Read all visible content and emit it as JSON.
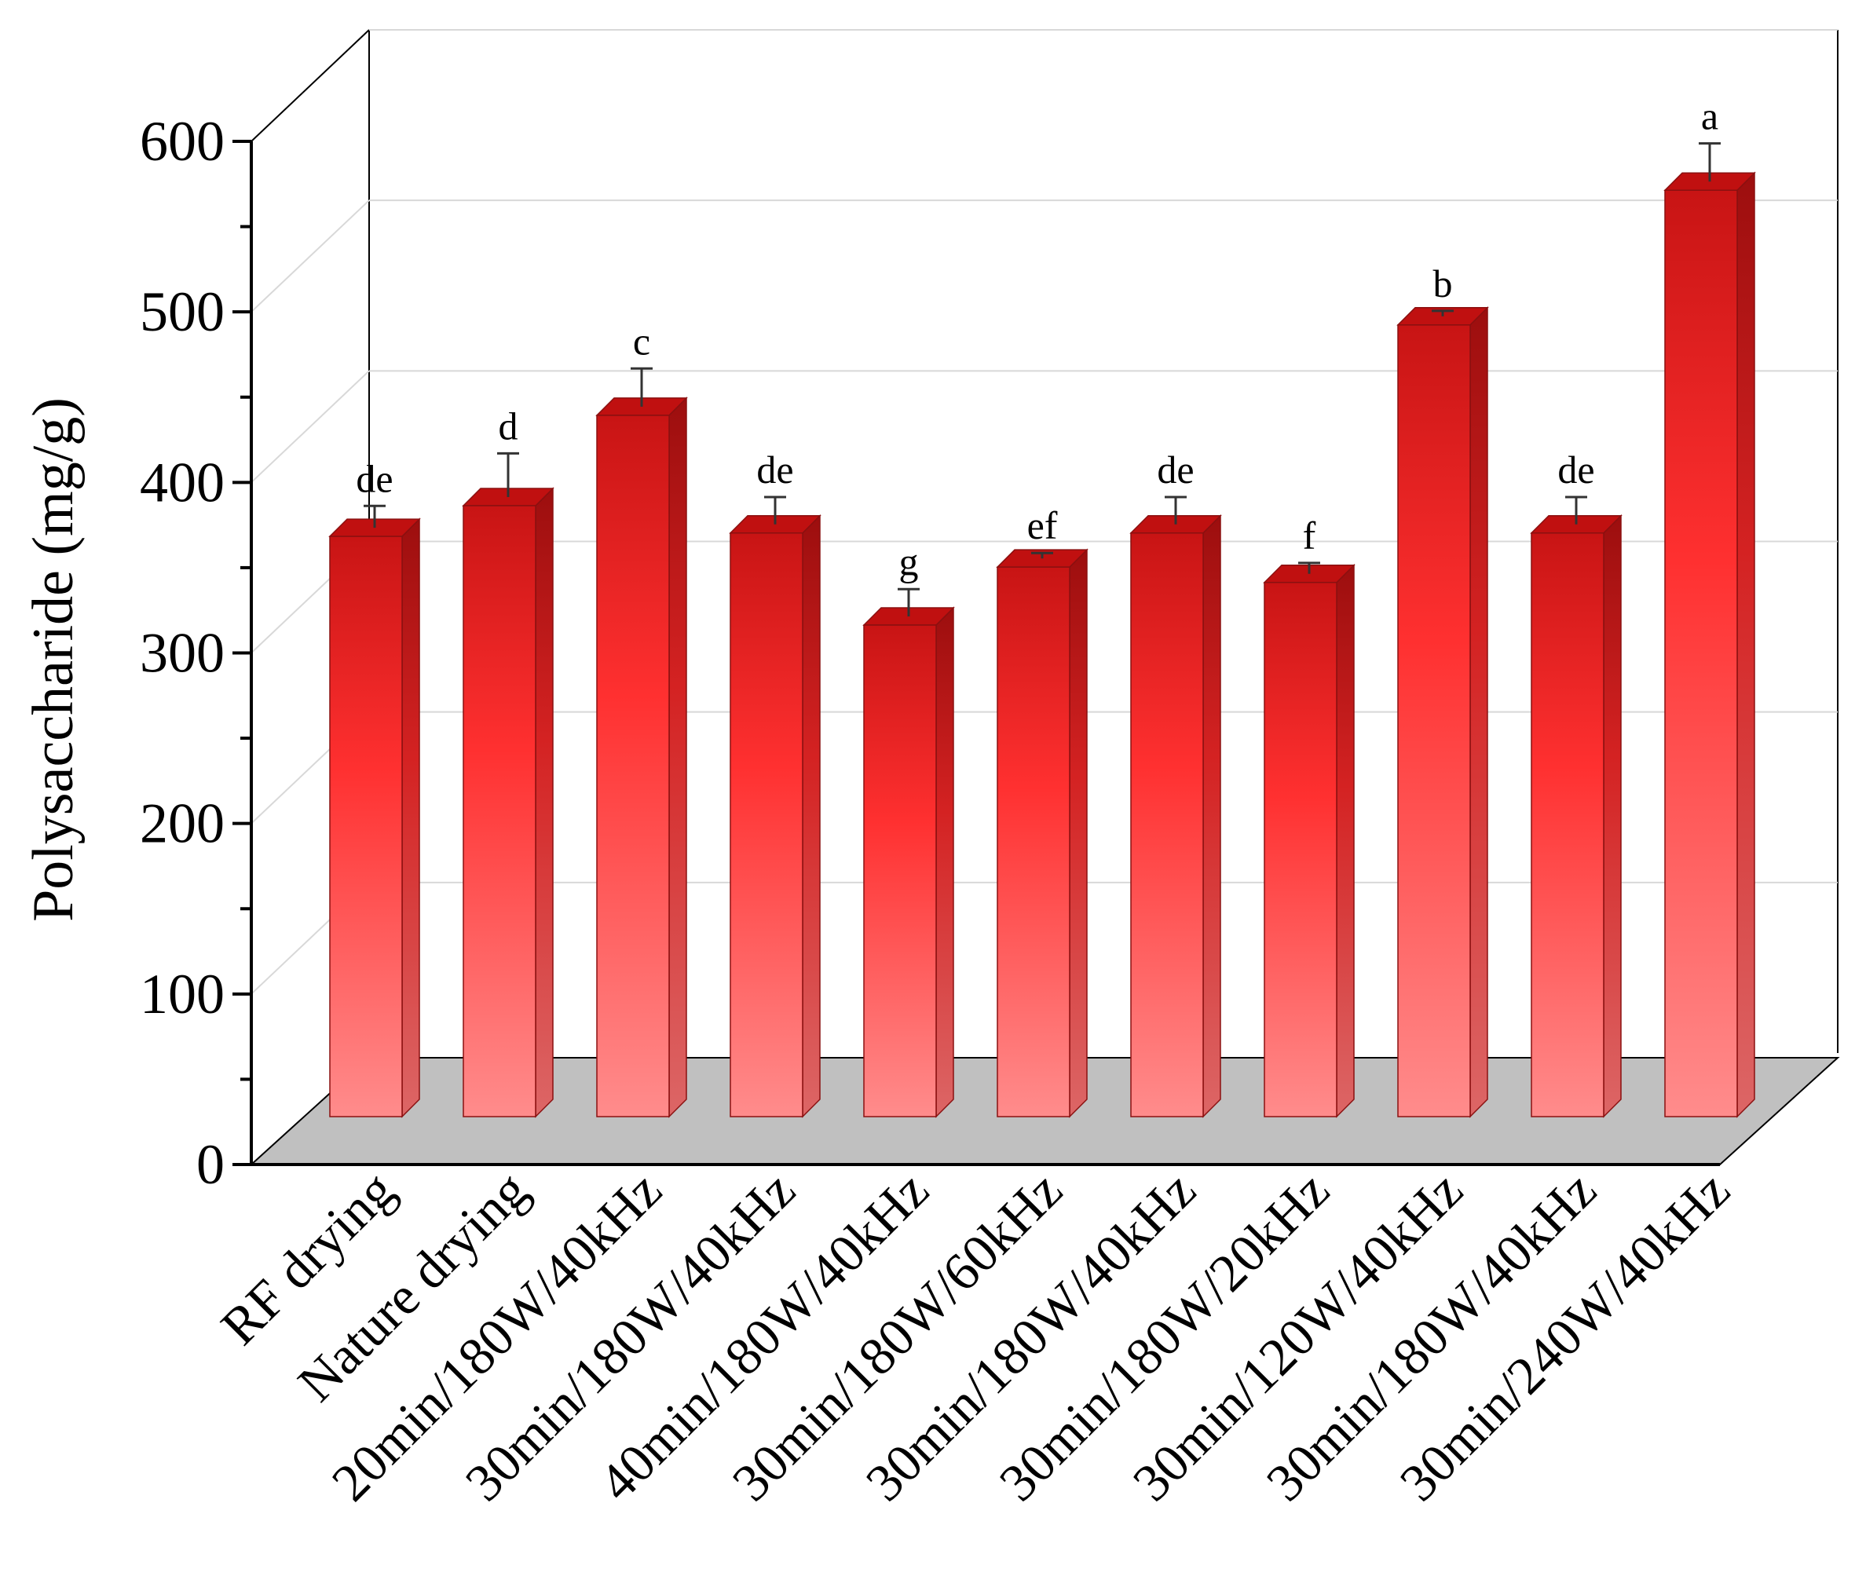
{
  "chart_data": {
    "type": "bar",
    "ylabel": "Polysaccharide (mg/g)",
    "ylim": [
      0,
      600
    ],
    "yticks": [
      0,
      100,
      200,
      300,
      400,
      500,
      600
    ],
    "grid": true,
    "categories": [
      "RF drying",
      "Nature drying",
      "20min/180W/40kHz",
      "30min/180W/40kHz",
      "40min/180W/40kHz",
      "30min/180W/60kHz",
      "30min/180W/40kHz",
      "30min/180W/20kHz",
      "30min/120W/40kHz",
      "30min/180W/40kHz",
      "30min/240W/40kHz"
    ],
    "values": [
      342,
      360,
      413,
      344,
      290,
      324,
      344,
      315,
      466,
      344,
      545
    ],
    "errors": [
      4,
      8,
      7,
      5,
      5,
      1,
      5,
      2,
      1,
      5,
      7
    ],
    "significance": [
      "de",
      "d",
      "c",
      "de",
      "g",
      "ef",
      "de",
      "f",
      "b",
      "de",
      "a"
    ],
    "colors": {
      "bar_top": "#c81414",
      "bar_mid": "#ff3030",
      "bar_bottom": "#ff8c8c",
      "floor": "#c0c0c0"
    }
  }
}
